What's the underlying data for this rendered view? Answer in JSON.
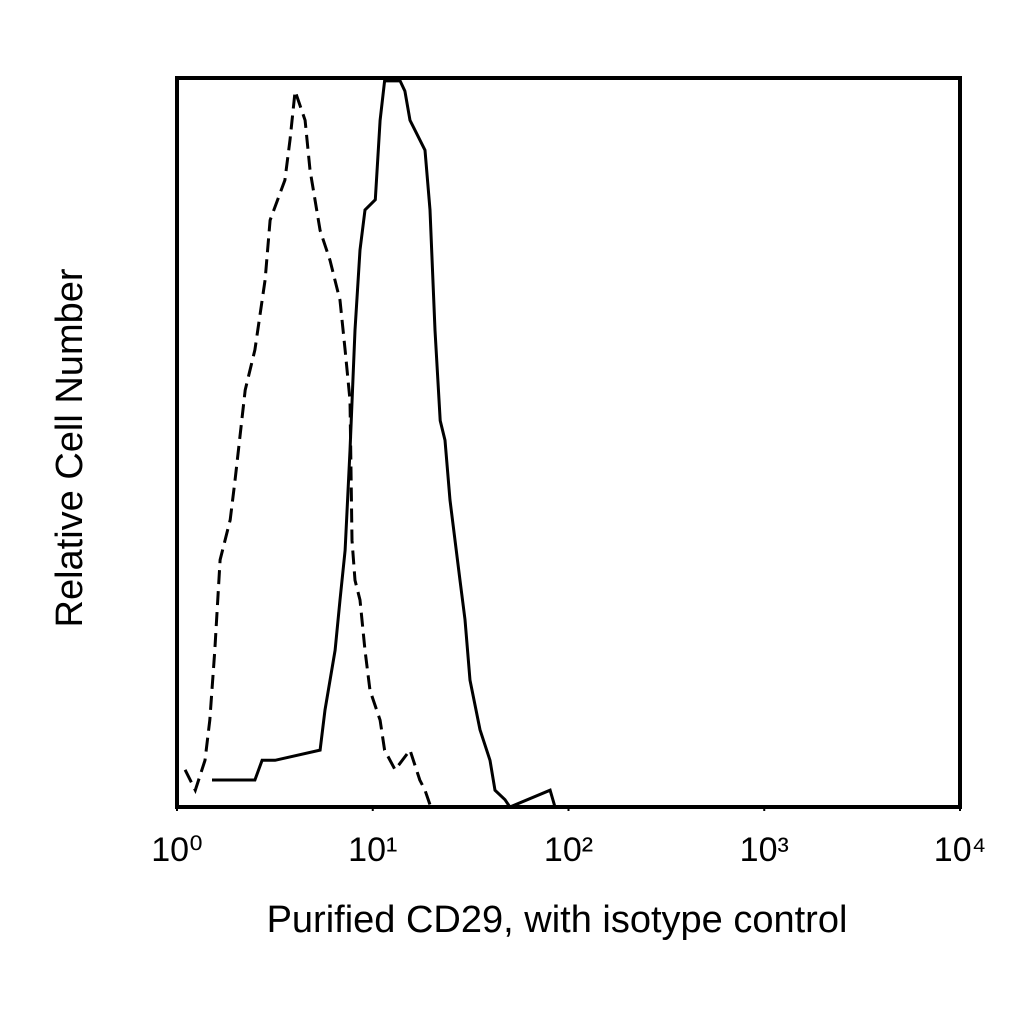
{
  "chart_data": {
    "type": "line",
    "xlabel": "Purified CD29, with isotype control",
    "ylabel": "Relative Cell Number",
    "xscale": "log",
    "xlim": [
      1,
      10000
    ],
    "xticks": [
      {
        "value": 1,
        "label": "10⁰"
      },
      {
        "value": 10,
        "label": "10¹"
      },
      {
        "value": 100,
        "label": "10²"
      },
      {
        "value": 1000,
        "label": "10³"
      },
      {
        "value": 10000,
        "label": "10⁴"
      }
    ],
    "ylim": [
      0,
      100
    ],
    "series": [
      {
        "color": "#000000",
        "line_style": "solid",
        "x": [
          1.51,
          2.5,
          2.72,
          3.17,
          5.38,
          5.7,
          6.42,
          6.8,
          7.22,
          7.65,
          8.12,
          8.61,
          9.13,
          10.3,
          10.9,
          11.5,
          12.2,
          13.8,
          14.6,
          15.5,
          16.4,
          18.5,
          19.6,
          20.8,
          22.1,
          23.4,
          24.8,
          27.9,
          29.6,
          31.4,
          35.3,
          39.7,
          42.1,
          47.4,
          50.2,
          80.5,
          85.3
        ],
        "values": [
          3.7,
          3.7,
          6.4,
          6.4,
          7.8,
          13.3,
          21.5,
          28.4,
          35.2,
          48.9,
          65.4,
          76.4,
          81.9,
          83.3,
          94.2,
          99.6,
          99.6,
          99.6,
          98.2,
          94.2,
          92.9,
          90.1,
          81.9,
          65.4,
          53.0,
          50.3,
          42.1,
          31.1,
          25.7,
          17.4,
          10.6,
          6.4,
          2.3,
          1.0,
          0,
          2.3,
          0
        ]
      },
      {
        "color": "#000000",
        "line_style": "dashed",
        "x": [
          1.1,
          1.24,
          1.39,
          1.47,
          1.56,
          1.66,
          1.87,
          1.98,
          2.23,
          2.5,
          2.82,
          2.99,
          3.56,
          3.78,
          4.01,
          4.51,
          4.78,
          5.38,
          6.05,
          6.8,
          7.22,
          7.65,
          7.83,
          8.12,
          8.61,
          9.13,
          9.68,
          10.9,
          11.5,
          13.0,
          15.5,
          17.4,
          18.5,
          19.6
        ],
        "values": [
          5.1,
          2.3,
          6.4,
          11.9,
          21.5,
          33.9,
          39.4,
          44.9,
          57.2,
          62.7,
          72.3,
          80.5,
          86.0,
          91.5,
          98.2,
          94.2,
          87.4,
          79.1,
          75.0,
          69.5,
          62.7,
          55.8,
          36.6,
          31.1,
          28.4,
          21.5,
          16.0,
          11.9,
          7.8,
          5.1,
          7.8,
          3.7,
          2.3,
          0.3
        ]
      }
    ]
  }
}
